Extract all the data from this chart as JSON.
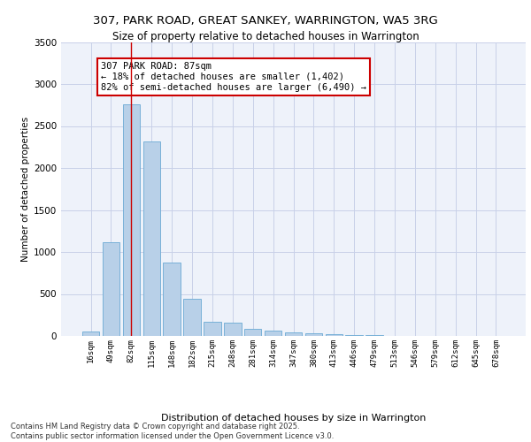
{
  "title_line1": "307, PARK ROAD, GREAT SANKEY, WARRINGTON, WA5 3RG",
  "title_line2": "Size of property relative to detached houses in Warrington",
  "xlabel": "Distribution of detached houses by size in Warrington",
  "ylabel": "Number of detached properties",
  "bar_categories": [
    "16sqm",
    "49sqm",
    "82sqm",
    "115sqm",
    "148sqm",
    "182sqm",
    "215sqm",
    "248sqm",
    "281sqm",
    "314sqm",
    "347sqm",
    "380sqm",
    "413sqm",
    "446sqm",
    "479sqm",
    "513sqm",
    "546sqm",
    "579sqm",
    "612sqm",
    "645sqm",
    "678sqm"
  ],
  "bar_values": [
    50,
    1120,
    2760,
    2320,
    870,
    440,
    170,
    160,
    85,
    60,
    45,
    30,
    25,
    15,
    10,
    5,
    3,
    2,
    1,
    1,
    1
  ],
  "bar_color": "#b8d0e8",
  "bar_edge_color": "#6aaad4",
  "bg_color": "#eef2fa",
  "grid_color": "#c8d0e8",
  "vline_x_index": 2,
  "vline_color": "#cc0000",
  "annotation_text": "307 PARK ROAD: 87sqm\n← 18% of detached houses are smaller (1,402)\n82% of semi-detached houses are larger (6,490) →",
  "annotation_box_color": "#ffffff",
  "annotation_box_edge": "#cc0000",
  "ylim": [
    0,
    3500
  ],
  "yticks": [
    0,
    500,
    1000,
    1500,
    2000,
    2500,
    3000,
    3500
  ],
  "footer_line1": "Contains HM Land Registry data © Crown copyright and database right 2025.",
  "footer_line2": "Contains public sector information licensed under the Open Government Licence v3.0."
}
